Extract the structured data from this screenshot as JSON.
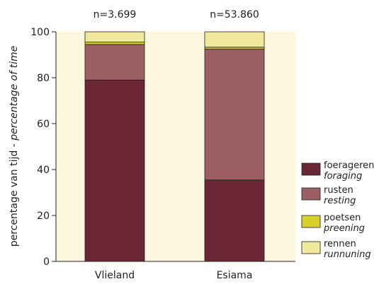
{
  "chart_data": {
    "type": "bar",
    "stacked": true,
    "percent": true,
    "categories": [
      "Vlieland",
      "Esiama"
    ],
    "sample_sizes": [
      "n=3.699",
      "n=53.860"
    ],
    "ylabel": "percentage van tijd",
    "ylabel_italic": "percentage of time",
    "ylabel_separator": " - ",
    "ylim": [
      0,
      100
    ],
    "yticks": [
      0,
      20,
      40,
      60,
      80,
      100
    ],
    "grid": false,
    "legend_position": "right",
    "series": [
      {
        "name": "foerageren",
        "name_en": "foraging",
        "color": "#6B2635",
        "values": [
          79,
          35.5
        ]
      },
      {
        "name": "rusten",
        "name_en": "resting",
        "color": "#9C6064",
        "values": [
          15.5,
          57
        ]
      },
      {
        "name": "poetsen",
        "name_en": "preening",
        "color": "#D8CF2A",
        "values": [
          1,
          0.8
        ]
      },
      {
        "name": "rennen",
        "name_en": "runnuning",
        "color": "#F0E89A",
        "values": [
          4.5,
          6.7
        ]
      }
    ],
    "plot_background": "#FAF7DC"
  }
}
